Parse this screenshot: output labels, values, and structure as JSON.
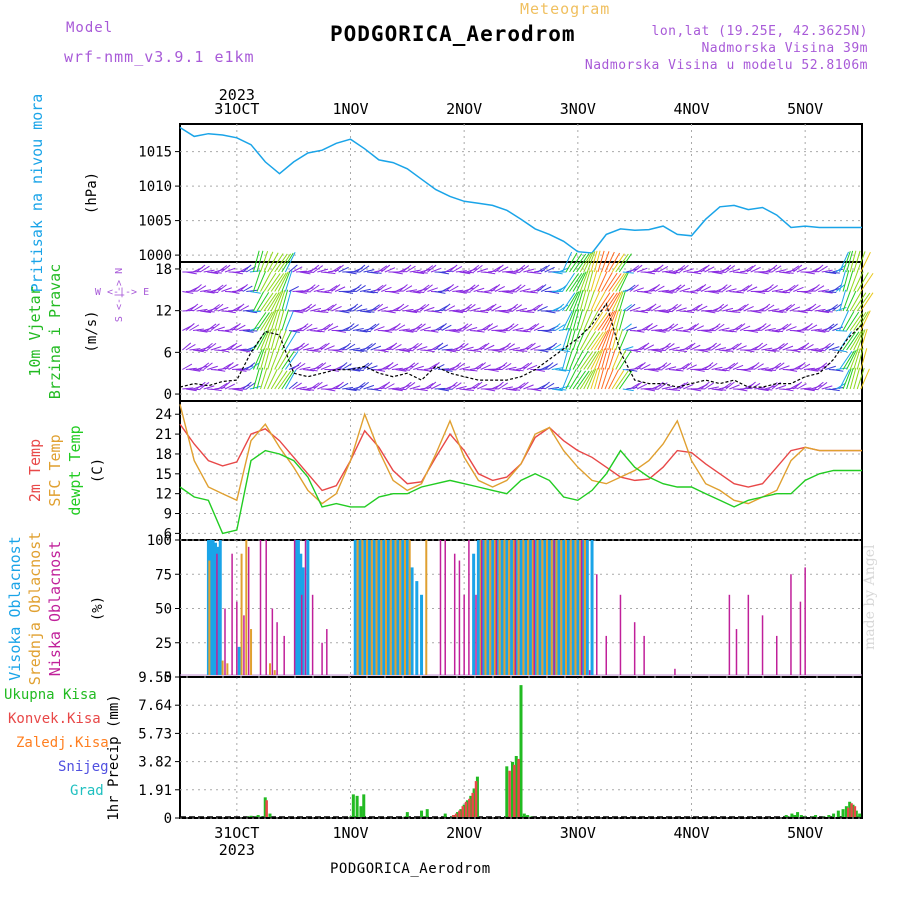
{
  "header": {
    "model_label": "Model",
    "model_name": "wrf-nmm_v3.9.1 e1km",
    "product": "Meteogram",
    "station": "PODGORICA_Aerodrom",
    "lonlat": "lon,lat (19.25E, 42.3625N)",
    "elevation": "Nadmorska Visina 39m",
    "model_elevation": "Nadmorska Visina u modelu 52.8106m",
    "footer_station": "PODGORICA_Aerodrom",
    "credit": "made by Angel"
  },
  "colors": {
    "pressure": "#1aa4e8",
    "temp2m": "#e84848",
    "sfc_temp": "#e0a030",
    "dewpoint": "#22cc22",
    "high_cloud": "#1aa4e8",
    "mid_cloud": "#e0a030",
    "low_cloud": "#c0209a",
    "total_precip": "#22bb22",
    "conv_precip": "#e84848",
    "frozen_precip": "#ff7f20",
    "snow": "#5050e0",
    "hail": "#20c0c0",
    "model_text": "#a85ad8"
  },
  "chart_data": [
    {
      "type": "line",
      "panel": "pressure",
      "ylabel": "Pritisak na nivou mora",
      "unit": "(hPa)",
      "ylim": [
        999,
        1019
      ],
      "yticks": [
        1000,
        1005,
        1010,
        1015
      ],
      "x": [
        0,
        3,
        6,
        9,
        12,
        15,
        18,
        21,
        24,
        27,
        30,
        33,
        36,
        39,
        42,
        45,
        48,
        51,
        54,
        57,
        60,
        63,
        66,
        69,
        72,
        75,
        78,
        81,
        84,
        87,
        90,
        93,
        96,
        99,
        102,
        105,
        108,
        111,
        114,
        117,
        120,
        123,
        126,
        129,
        132,
        135,
        138,
        141,
        144
      ],
      "values": [
        1018.5,
        1017.2,
        1017.6,
        1017.4,
        1017.0,
        1016.0,
        1013.5,
        1011.8,
        1013.5,
        1014.8,
        1015.2,
        1016.2,
        1016.8,
        1015.4,
        1013.8,
        1013.4,
        1012.5,
        1011.0,
        1009.5,
        1008.5,
        1007.8,
        1007.5,
        1007.2,
        1006.5,
        1005.2,
        1003.8,
        1003.0,
        1002.0,
        1000.5,
        1000.3,
        1003.0,
        1003.8,
        1003.6,
        1003.7,
        1004.2,
        1003.0,
        1002.8,
        1005.2,
        1007.0,
        1007.2,
        1006.6,
        1006.9,
        1005.8,
        1004.0,
        1004.2,
        1004.0,
        1004.0,
        1004.0,
        1004.0
      ]
    },
    {
      "type": "line",
      "panel": "wind",
      "ylabel": "10m Vjetar",
      "ylabel2": "Brzina i Pravac",
      "unit": "(m/s)",
      "compass": "W <-|-> E",
      "compass2": "S <-|-> N",
      "ylim": [
        -1,
        19
      ],
      "yticks": [
        0,
        6,
        12,
        18
      ],
      "x": [
        0,
        3,
        6,
        9,
        12,
        15,
        18,
        21,
        24,
        27,
        30,
        33,
        36,
        39,
        42,
        45,
        48,
        51,
        54,
        57,
        60,
        63,
        66,
        69,
        72,
        75,
        78,
        81,
        84,
        87,
        90,
        93,
        96,
        99,
        102,
        105,
        108,
        111,
        114,
        117,
        120,
        123,
        126,
        129,
        132,
        135,
        138,
        141,
        144
      ],
      "values": [
        1.0,
        1.5,
        1.2,
        1.8,
        2.0,
        6.0,
        9.0,
        8.5,
        3.0,
        2.5,
        3.0,
        3.5,
        3.5,
        4.0,
        3.0,
        2.5,
        3.0,
        2.0,
        4.0,
        3.0,
        2.5,
        2.0,
        2.0,
        2.0,
        2.5,
        3.5,
        5.0,
        6.5,
        8.0,
        10.0,
        13.0,
        6.0,
        2.0,
        1.5,
        1.5,
        1.0,
        1.5,
        2.0,
        1.5,
        2.0,
        1.0,
        1.0,
        1.5,
        1.5,
        2.5,
        3.0,
        5.0,
        8.0,
        10.0
      ]
    },
    {
      "type": "line",
      "panel": "temperature",
      "ylabel": "2m Temp",
      "ylabel2": "SFC Temp",
      "ylabel3": "dewpt Temp",
      "unit": "(C)",
      "ylim": [
        5,
        26
      ],
      "yticks": [
        6,
        9,
        12,
        15,
        18,
        21,
        24
      ],
      "x": [
        0,
        3,
        6,
        9,
        12,
        15,
        18,
        21,
        24,
        27,
        30,
        33,
        36,
        39,
        42,
        45,
        48,
        51,
        54,
        57,
        60,
        63,
        66,
        69,
        72,
        75,
        78,
        81,
        84,
        87,
        90,
        93,
        96,
        99,
        102,
        105,
        108,
        111,
        114,
        117,
        120,
        123,
        126,
        129,
        132,
        135,
        138,
        141,
        144
      ],
      "series": [
        {
          "name": "2m Temp",
          "values": [
            22.5,
            19.5,
            17.0,
            16.2,
            16.8,
            21.0,
            21.8,
            20.0,
            17.5,
            15.0,
            12.5,
            13.2,
            17.0,
            21.5,
            19.0,
            15.5,
            13.5,
            13.8,
            17.5,
            21.0,
            18.5,
            15.0,
            14.0,
            14.5,
            16.5,
            20.5,
            22.0,
            20.0,
            18.5,
            17.5,
            16.0,
            14.5,
            14.0,
            14.2,
            16.0,
            18.5,
            18.2,
            16.5,
            15.0,
            13.5,
            13.0,
            13.5,
            16.0,
            18.5,
            19.0,
            18.5,
            18.5,
            18.5,
            18.5
          ]
        },
        {
          "name": "SFC Temp",
          "values": [
            25.5,
            17.0,
            13.0,
            12.0,
            11.0,
            20.0,
            22.5,
            19.0,
            16.0,
            12.5,
            10.5,
            12.0,
            17.0,
            24.0,
            18.5,
            14.0,
            12.5,
            13.5,
            18.0,
            23.0,
            17.5,
            14.0,
            13.0,
            14.0,
            16.5,
            21.0,
            22.0,
            18.5,
            16.0,
            14.0,
            13.5,
            14.5,
            15.5,
            17.0,
            19.5,
            23.0,
            17.0,
            13.5,
            12.5,
            11.0,
            10.5,
            11.5,
            12.5,
            17.0,
            19.0,
            18.5,
            18.5,
            18.5,
            18.5
          ]
        },
        {
          "name": "dewpt Temp",
          "values": [
            13.0,
            11.5,
            11.0,
            6.0,
            6.5,
            17.0,
            18.5,
            18.0,
            17.0,
            14.5,
            10.0,
            10.5,
            10.0,
            10.0,
            11.5,
            12.0,
            12.0,
            13.0,
            13.5,
            14.0,
            13.5,
            13.0,
            12.5,
            12.0,
            14.0,
            15.0,
            14.0,
            11.5,
            11.0,
            12.5,
            15.0,
            18.5,
            16.0,
            14.5,
            13.5,
            13.0,
            13.0,
            12.0,
            11.0,
            10.0,
            11.0,
            11.5,
            12.0,
            12.0,
            14.0,
            15.0,
            15.5,
            15.5,
            15.5
          ]
        }
      ]
    },
    {
      "type": "bar",
      "panel": "cloud",
      "ylabel": "Visoka Oblacnost",
      "ylabel2": "Srednja Oblacnost",
      "ylabel3": "Niska Oblacnost",
      "unit": "(%)",
      "ylim": [
        0,
        100
      ],
      "yticks": [
        0,
        25,
        50,
        75,
        100
      ],
      "series": [
        {
          "name": "Visoka Oblacnost",
          "x": [
            6,
            6.5,
            7,
            7.5,
            8,
            8.5,
            12.5,
            24.5,
            25,
            25.5,
            26,
            27,
            37,
            38,
            39,
            40,
            41,
            42,
            43,
            44,
            45,
            46,
            47,
            48,
            49,
            50,
            51,
            62,
            63,
            64,
            65,
            66,
            67,
            68,
            69,
            70,
            71,
            72,
            73,
            74,
            75,
            76,
            77,
            78,
            79,
            80,
            81,
            82,
            83,
            84,
            85,
            86,
            87
          ],
          "values": [
            100,
            100,
            100,
            98,
            95,
            100,
            22,
            100,
            100,
            90,
            80,
            100,
            100,
            100,
            100,
            100,
            100,
            100,
            100,
            100,
            100,
            100,
            100,
            100,
            80,
            70,
            60,
            90,
            100,
            100,
            100,
            100,
            100,
            100,
            100,
            100,
            100,
            100,
            100,
            100,
            100,
            100,
            100,
            100,
            100,
            100,
            100,
            100,
            100,
            100,
            100,
            100,
            100
          ]
        },
        {
          "name": "Srednja Oblacnost",
          "x": [
            6.2,
            9,
            10,
            13,
            14,
            15,
            19,
            20,
            37.5,
            38.5,
            39.5,
            40.5,
            41.5,
            42.5,
            43.5,
            44.5,
            45.5,
            46.5,
            47.5,
            48.5,
            52,
            63.5,
            64.5,
            65.5,
            66.5,
            67.5,
            68.5,
            69.5,
            70.5,
            71.5,
            72.5,
            73.5,
            74.5,
            75.5,
            76.5,
            77.5,
            78.5,
            79.5,
            80.5,
            81.5,
            82.5,
            83.5,
            84.5,
            85.5
          ],
          "values": [
            85,
            12,
            10,
            90,
            100,
            35,
            10,
            5,
            100,
            100,
            100,
            100,
            100,
            100,
            100,
            100,
            100,
            100,
            100,
            100,
            100,
            100,
            100,
            100,
            100,
            100,
            100,
            100,
            100,
            100,
            100,
            100,
            100,
            100,
            100,
            100,
            100,
            100,
            100,
            100,
            100,
            100,
            100,
            100
          ]
        },
        {
          "name": "Niska Oblacnost",
          "x": [
            7.8,
            9.5,
            11,
            12,
            13.5,
            14.5,
            17,
            18.2,
            19.5,
            20.5,
            22,
            24.2,
            25.7,
            26.5,
            28,
            30,
            31,
            55,
            56,
            58,
            59,
            60,
            61,
            62.5,
            63.7,
            66.8,
            70.8,
            74.8,
            79,
            84.8,
            86.5,
            88,
            90,
            93,
            96,
            98,
            104.5,
            116,
            117.5,
            120,
            123,
            126,
            129,
            131,
            132
          ],
          "values": [
            90,
            50,
            90,
            55,
            45,
            95,
            100,
            100,
            50,
            40,
            30,
            100,
            60,
            100,
            60,
            25,
            35,
            100,
            100,
            90,
            85,
            60,
            100,
            60,
            100,
            100,
            100,
            100,
            100,
            100,
            5,
            75,
            30,
            60,
            40,
            30,
            6,
            60,
            35,
            60,
            45,
            30,
            75,
            55,
            80
          ]
        }
      ]
    },
    {
      "type": "bar",
      "panel": "precip",
      "ylabel": "1hr Precip",
      "unit": "(mm)",
      "ylim": [
        0,
        9.55
      ],
      "yticks": [
        0,
        1.91,
        3.82,
        5.73,
        7.64,
        9.55
      ],
      "legend": [
        "Ukupna  Kisa",
        "Konvek.Kisa",
        "Zaledj.Kisa",
        "Snijeg",
        "Grad"
      ],
      "series": [
        {
          "name": "Ukupna  Kisa",
          "x": [
            14,
            14.5,
            15,
            15.5,
            16,
            16.5,
            17,
            18,
            19,
            36,
            36.6,
            37.4,
            38.2,
            38.8,
            47.5,
            48,
            51,
            51.6,
            52.2,
            56,
            57.4,
            58,
            58.6,
            59.3,
            60,
            60.7,
            61.4,
            62.1,
            62.8,
            69,
            70.2,
            71,
            72,
            72.7,
            73.4,
            74.1,
            74.8,
            128,
            128.6,
            129.2,
            129.8,
            130.4,
            131.2,
            132,
            132.8,
            133.5,
            134.2,
            135,
            136,
            137,
            138,
            139,
            140,
            140.7,
            141.4,
            142.1,
            142.8,
            143.5
          ],
          "values": [
            0.05,
            0.1,
            0.15,
            0.05,
            0.1,
            0.2,
            0.1,
            1.4,
            0.3,
            0.1,
            1.6,
            1.5,
            0.8,
            1.6,
            0.1,
            0.4,
            0.5,
            0.1,
            0.6,
            0.3,
            0.1,
            0.2,
            0.4,
            0.6,
            0.9,
            1.2,
            1.5,
            2.0,
            2.8,
            3.5,
            3.8,
            4.2,
            9.0,
            0.3,
            0.2,
            0.1,
            0.05,
            0.2,
            0.1,
            0.3,
            0.2,
            0.4,
            0.2,
            0.1,
            0.05,
            0.1,
            0.2,
            0.05,
            0.1,
            0.2,
            0.3,
            0.5,
            0.6,
            0.8,
            1.1,
            0.9,
            0.5,
            0.3
          ]
        },
        {
          "name": "Konvek.Kisa",
          "x": [
            18.3,
            57.7,
            58.3,
            59,
            59.7,
            60.4,
            61.1,
            61.8,
            62.5,
            69.6,
            70.6,
            71.5,
            141.1,
            141.8,
            142.5
          ],
          "values": [
            1.2,
            0.2,
            0.3,
            0.5,
            0.8,
            1.1,
            1.3,
            1.7,
            2.5,
            3.2,
            3.6,
            4.0,
            0.7,
            1.0,
            0.8
          ]
        }
      ]
    }
  ],
  "x_axis": {
    "top_year": "2023",
    "bottom_year": "2023",
    "days": [
      {
        "label": "31OCT",
        "x": 12
      },
      {
        "label": "1NOV",
        "x": 36
      },
      {
        "label": "2NOV",
        "x": 60
      },
      {
        "label": "3NOV",
        "x": 84
      },
      {
        "label": "4NOV",
        "x": 108
      },
      {
        "label": "5NOV",
        "x": 132
      }
    ]
  }
}
